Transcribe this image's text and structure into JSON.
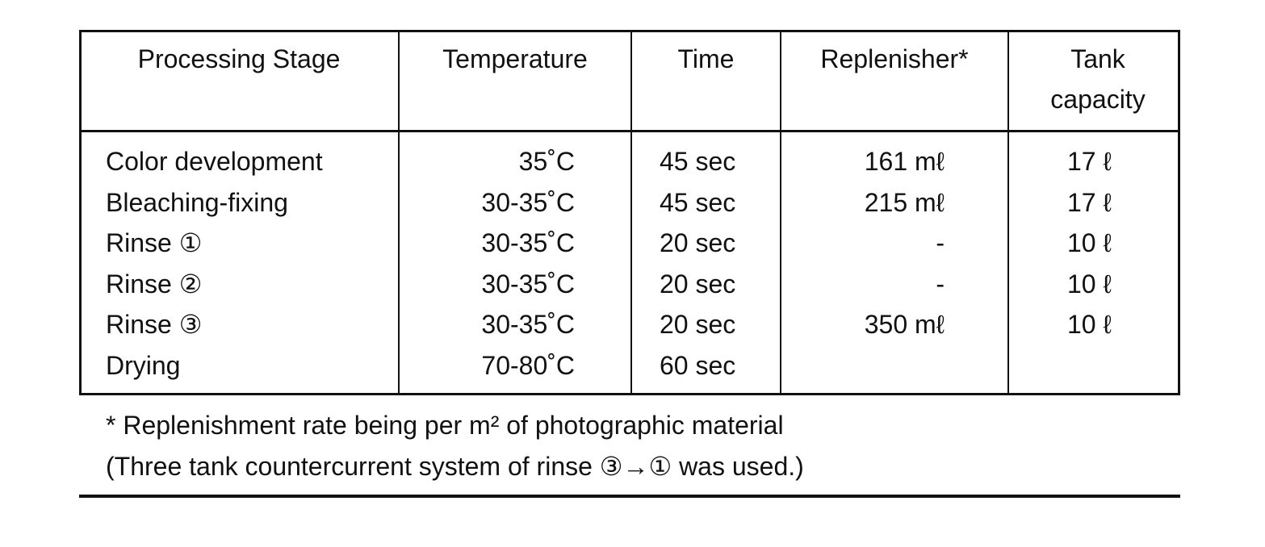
{
  "table": {
    "header": [
      "Processing Stage",
      "Temperature",
      "Time",
      "Replenisher*",
      "Tank capacity"
    ],
    "rows": [
      [
        "Color development",
        "35˚C",
        "45 sec",
        "161 mℓ",
        "17 ℓ"
      ],
      [
        "Bleaching-fixing",
        "30-35˚C",
        "45 sec",
        "215 mℓ",
        "17 ℓ"
      ],
      [
        "Rinse ①",
        "30-35˚C",
        "20 sec",
        "-",
        "10 ℓ"
      ],
      [
        "Rinse ②",
        "30-35˚C",
        "20 sec",
        "-",
        "10 ℓ"
      ],
      [
        "Rinse ③",
        "30-35˚C",
        "20 sec",
        "350 mℓ",
        "10 ℓ"
      ],
      [
        "Drying",
        "70-80˚C",
        "60 sec"
      ]
    ]
  },
  "footnotes": [
    "* Replenishment rate being per m² of photographic material",
    "(Three tank countercurrent system of rinse ③→① was used.)"
  ]
}
